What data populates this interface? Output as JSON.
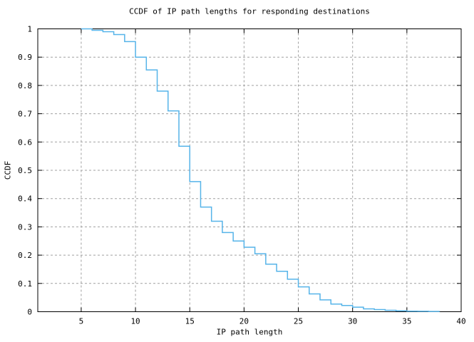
{
  "chart_data": {
    "type": "line",
    "subtype": "step",
    "title": "CCDF of IP path lengths for responding destinations",
    "xlabel": "IP path length",
    "ylabel": "CCDF",
    "xlim": [
      1,
      40
    ],
    "ylim": [
      0,
      1
    ],
    "grid": true,
    "legend_position": "none",
    "colors": {
      "line": "#56B4E9",
      "grid": "#A0A0A0",
      "axis": "#000000",
      "background": "#FFFFFF",
      "text": "#000000"
    },
    "x_ticks": [
      {
        "v": 5,
        "label": "5"
      },
      {
        "v": 10,
        "label": "10"
      },
      {
        "v": 15,
        "label": "15"
      },
      {
        "v": 20,
        "label": "20"
      },
      {
        "v": 25,
        "label": "25"
      },
      {
        "v": 30,
        "label": "30"
      },
      {
        "v": 35,
        "label": "35"
      },
      {
        "v": 40,
        "label": "40"
      }
    ],
    "y_ticks": [
      {
        "v": 0,
        "label": "0"
      },
      {
        "v": 0.1,
        "label": "0.1"
      },
      {
        "v": 0.2,
        "label": "0.2"
      },
      {
        "v": 0.3,
        "label": "0.3"
      },
      {
        "v": 0.4,
        "label": "0.4"
      },
      {
        "v": 0.5,
        "label": "0.5"
      },
      {
        "v": 0.6,
        "label": "0.6"
      },
      {
        "v": 0.7,
        "label": "0.7"
      },
      {
        "v": 0.8,
        "label": "0.8"
      },
      {
        "v": 0.9,
        "label": "0.9"
      },
      {
        "v": 1,
        "label": "1"
      }
    ],
    "series": [
      {
        "name": "ccdf",
        "x": [
          5,
          6,
          7,
          8,
          9,
          10,
          11,
          12,
          13,
          14,
          15,
          16,
          17,
          18,
          19,
          20,
          21,
          22,
          23,
          24,
          25,
          26,
          27,
          28,
          29,
          30,
          31,
          32,
          33,
          34,
          35,
          36,
          37,
          38
        ],
        "y": [
          1.0,
          0.995,
          0.99,
          0.98,
          0.955,
          0.9,
          0.855,
          0.78,
          0.71,
          0.585,
          0.46,
          0.37,
          0.32,
          0.28,
          0.25,
          0.228,
          0.205,
          0.168,
          0.143,
          0.115,
          0.088,
          0.063,
          0.042,
          0.027,
          0.022,
          0.016,
          0.01,
          0.0075,
          0.005,
          0.003,
          0.002,
          0.0015,
          0.001,
          0.0
        ]
      }
    ]
  }
}
